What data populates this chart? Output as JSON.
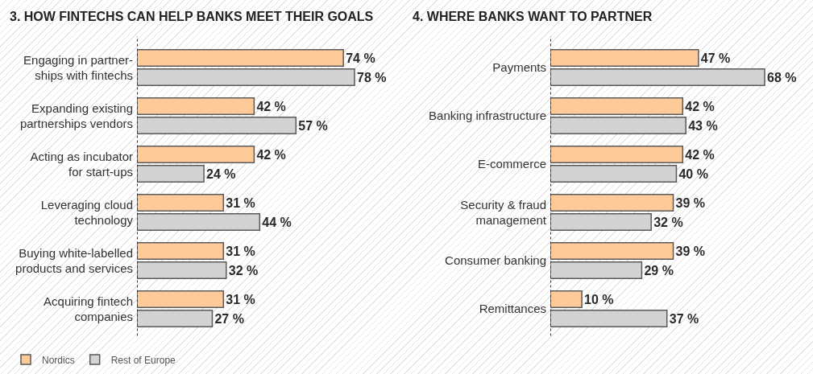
{
  "chart_data": [
    {
      "type": "bar",
      "orientation": "horizontal",
      "title": "3. HOW FINTECHS CAN HELP BANKS MEET THEIR GOALS",
      "tick_labels": "y",
      "legend": "bottom left",
      "categories": [
        "Engaging in partner-\nships with fintechs",
        "Expanding existing\npartnerships vendors",
        "Acting as incubator\nfor start-ups",
        "Leveraging cloud\ntechnology",
        "Buying white-labelled\nproducts and services",
        "Acquiring fintech\ncompanies"
      ],
      "series": [
        {
          "name": "Nordics",
          "color": "#fdca98",
          "values": [
            74,
            42,
            42,
            31,
            31,
            31
          ],
          "value_labels": [
            "74 %",
            "42 %",
            "42 %",
            "31 %",
            "31 %",
            "31 %"
          ]
        },
        {
          "name": "Rest of Europe",
          "color": "#d3d3d3",
          "values": [
            78,
            57,
            24,
            44,
            32,
            27
          ],
          "value_labels": [
            "78 %",
            "57 %",
            "24 %",
            "44 %",
            "32 %",
            "27 %"
          ]
        }
      ]
    },
    {
      "type": "bar",
      "orientation": "horizontal",
      "title": "4. WHERE BANKS WANT TO PARTNER",
      "tick_labels": "y",
      "categories": [
        "Payments",
        "Banking infrastructure",
        "E-commerce",
        "Security & fraud\nmanagement",
        "Consumer banking",
        "Remittances"
      ],
      "series": [
        {
          "color": "#fdca98",
          "values": [
            47,
            42,
            42,
            39,
            39,
            10
          ],
          "value_labels": [
            "47 %",
            "42 %",
            "42 %",
            "39 %",
            "39 %",
            "10 %"
          ]
        },
        {
          "color": "#d3d3d3",
          "values": [
            68,
            43,
            40,
            32,
            29,
            37
          ],
          "value_labels": [
            "68 %",
            "43 %",
            "40 %",
            "32 %",
            "29 %",
            "37 %"
          ]
        }
      ]
    }
  ]
}
